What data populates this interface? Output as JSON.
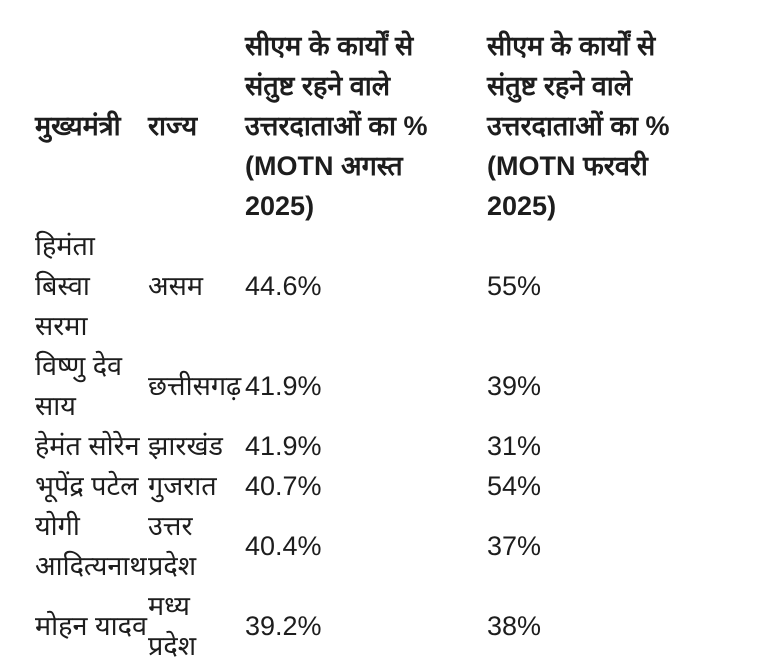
{
  "table": {
    "headers": [
      "मुख्यमंत्री",
      "राज्य",
      "सीएम के कार्यों से\nसंतुष्ट रहने वाले\nउत्तरदाताओं का %\n(MOTN अगस्त\n2025)",
      "सीएम के कार्यों से\nसंतुष्ट रहने वाले\nउत्तरदाताओं का %\n(MOTN फरवरी\n2025)"
    ],
    "rows": [
      {
        "cm": "हिमंता\nबिस्वा\nसरमा",
        "state": "असम",
        "motn_aug_2025": "44.6%",
        "motn_feb_2025": "55%"
      },
      {
        "cm": "विष्णु देव\nसाय",
        "state": "छत्तीसगढ़",
        "motn_aug_2025": "41.9%",
        "motn_feb_2025": "39%"
      },
      {
        "cm": "हेमंत सोरेन",
        "state": "झारखंड",
        "motn_aug_2025": "41.9%",
        "motn_feb_2025": "31%"
      },
      {
        "cm": "भूपेंद्र पटेल",
        "state": "गुजरात",
        "motn_aug_2025": "40.7%",
        "motn_feb_2025": "54%"
      },
      {
        "cm": "योगी\nआदित्यनाथ",
        "state": "उत्तर\nप्रदेश",
        "motn_aug_2025": "40.4%",
        "motn_feb_2025": "37%"
      },
      {
        "cm": "मोहन यादव",
        "state": "मध्य\nप्रदेश",
        "motn_aug_2025": "39.2%",
        "motn_feb_2025": "38%"
      }
    ]
  },
  "colors": {
    "background": "#ffffff",
    "text": "#1d1d1d"
  }
}
